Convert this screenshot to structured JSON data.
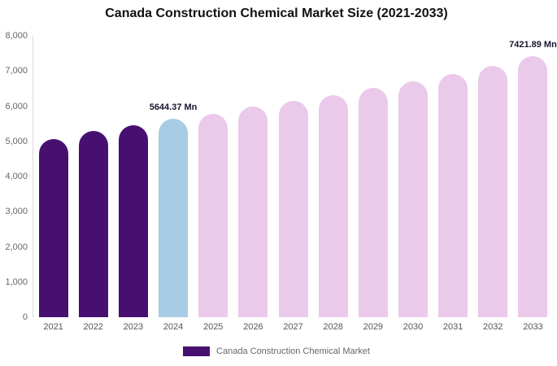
{
  "chart_data": {
    "type": "bar",
    "title": "Canada Construction Chemical Market Size (2021-2033)",
    "categories": [
      "2021",
      "2022",
      "2023",
      "2024",
      "2025",
      "2026",
      "2027",
      "2028",
      "2029",
      "2030",
      "2031",
      "2032",
      "2033"
    ],
    "values": [
      5060,
      5300,
      5450,
      5644.37,
      5780,
      6000,
      6150,
      6310,
      6520,
      6700,
      6910,
      7150,
      7421.89
    ],
    "xlabel": "",
    "ylabel": "",
    "ylim": [
      0,
      8000
    ],
    "ytick_step": 1000,
    "yticks": [
      "0",
      "1,000",
      "2,000",
      "3,000",
      "4,000",
      "5,000",
      "6,000",
      "7,000",
      "8,000"
    ],
    "grid": false,
    "legend_position": "bottom",
    "bar_colors": {
      "historical": "#471070",
      "current": "#a8cce4",
      "forecast": "#eac9ea"
    },
    "color_roles": [
      "historical",
      "historical",
      "historical",
      "current",
      "forecast",
      "forecast",
      "forecast",
      "forecast",
      "forecast",
      "forecast",
      "forecast",
      "forecast",
      "forecast"
    ],
    "annotations": [
      {
        "index": 3,
        "text": "5644.37 Mn"
      },
      {
        "index": 12,
        "text": "7421.89 Mn"
      }
    ]
  },
  "legend": {
    "label": "Canada Construction Chemical Market",
    "swatch_color": "#471070"
  }
}
